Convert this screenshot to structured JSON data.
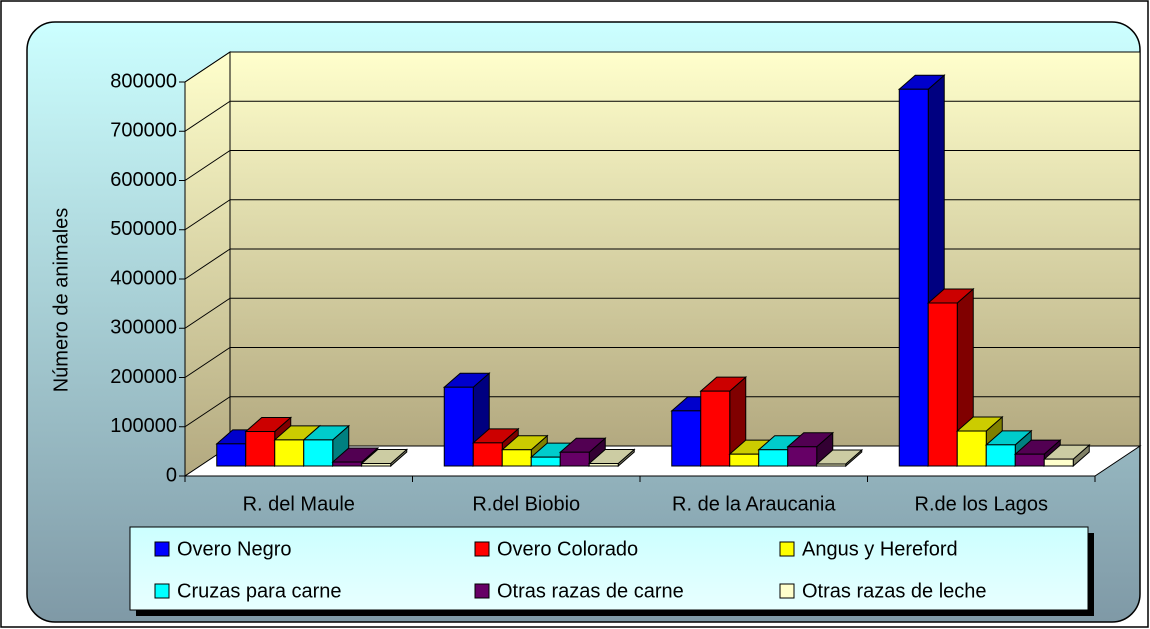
{
  "chart_data": {
    "type": "bar3d",
    "y_label": "Número de animales",
    "categories": [
      "R. del Maule",
      "R.del Biobio",
      "R. de la Araucania",
      "R.de los Lagos"
    ],
    "series": [
      {
        "name": "Overo  Negro",
        "color": "#0000ff",
        "values": [
          45000,
          160000,
          112000,
          765000
        ]
      },
      {
        "name": "Overo  Colorado",
        "color": "#ff0000",
        "values": [
          70000,
          47000,
          152000,
          331000
        ]
      },
      {
        "name": "Angus y Hereford",
        "color": "#ffff00",
        "values": [
          53000,
          33000,
          24000,
          71000
        ]
      },
      {
        "name": "Cruzas  para carne",
        "color": "#00ffff",
        "values": [
          53000,
          18000,
          33000,
          43000
        ]
      },
      {
        "name": "Otras razas  de carne",
        "color": "#660066",
        "values": [
          8000,
          28000,
          39000,
          24000
        ]
      },
      {
        "name": "Otras razas de leche",
        "color": "#ffffcc",
        "values": [
          5000,
          5000,
          4000,
          14000
        ]
      }
    ],
    "ylim": [
      0,
      800000
    ],
    "yticks": [
      0,
      100000,
      200000,
      300000,
      400000,
      500000,
      600000,
      700000,
      800000
    ],
    "grid": true
  }
}
